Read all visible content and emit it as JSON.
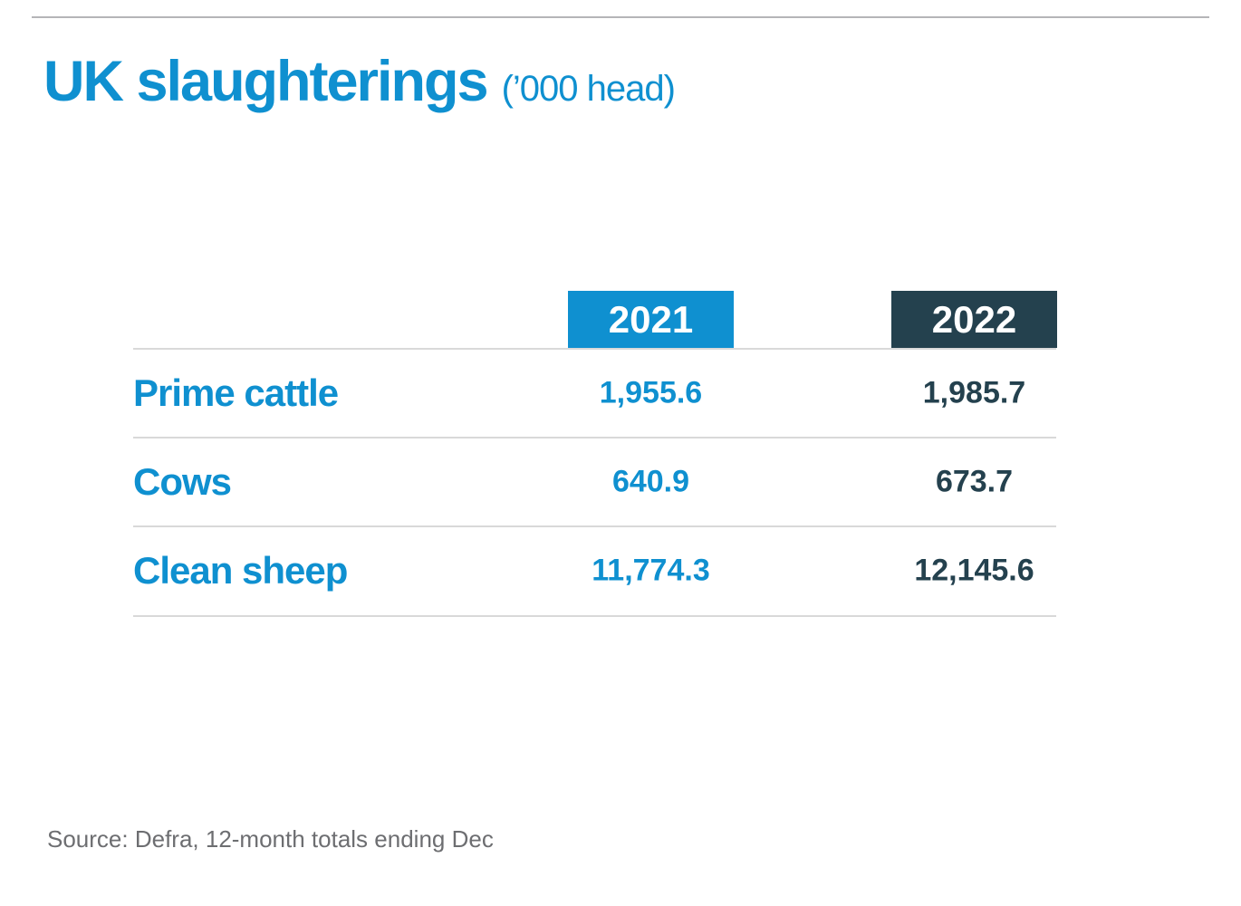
{
  "header": {
    "title": "UK slaughterings",
    "units": "(’000 head)"
  },
  "table": {
    "columns": [
      "2021",
      "2022"
    ],
    "rows": [
      {
        "label": "Prime cattle",
        "values": [
          "1,955.6",
          "1,985.7"
        ]
      },
      {
        "label": "Cows",
        "values": [
          "640.9",
          "673.7"
        ]
      },
      {
        "label": "Clean sheep",
        "values": [
          "11,774.3",
          "12,145.6"
        ]
      }
    ]
  },
  "footer": {
    "source": "Source: Defra, 12-month totals ending Dec"
  },
  "colors": {
    "blue": "#0f90d0",
    "dark": "#24414e",
    "divider": "#d9d9d9",
    "top_rule": "#b5b5b8",
    "source_text": "#6d6e71"
  },
  "chart_data": {
    "type": "table",
    "title": "UK slaughterings",
    "subtitle": "(’000 head)",
    "categories": [
      "Prime cattle",
      "Cows",
      "Clean sheep"
    ],
    "series": [
      {
        "name": "2021",
        "values": [
          1955.6,
          640.9,
          11774.3
        ]
      },
      {
        "name": "2022",
        "values": [
          1985.7,
          673.7,
          12145.6
        ]
      }
    ],
    "units": "thousand head",
    "source": "Source: Defra, 12-month totals ending Dec",
    "layout": {
      "header_2021_color": "#0f90d0",
      "header_2022_color": "#24414e",
      "grid": "horizontal-dividers"
    }
  }
}
